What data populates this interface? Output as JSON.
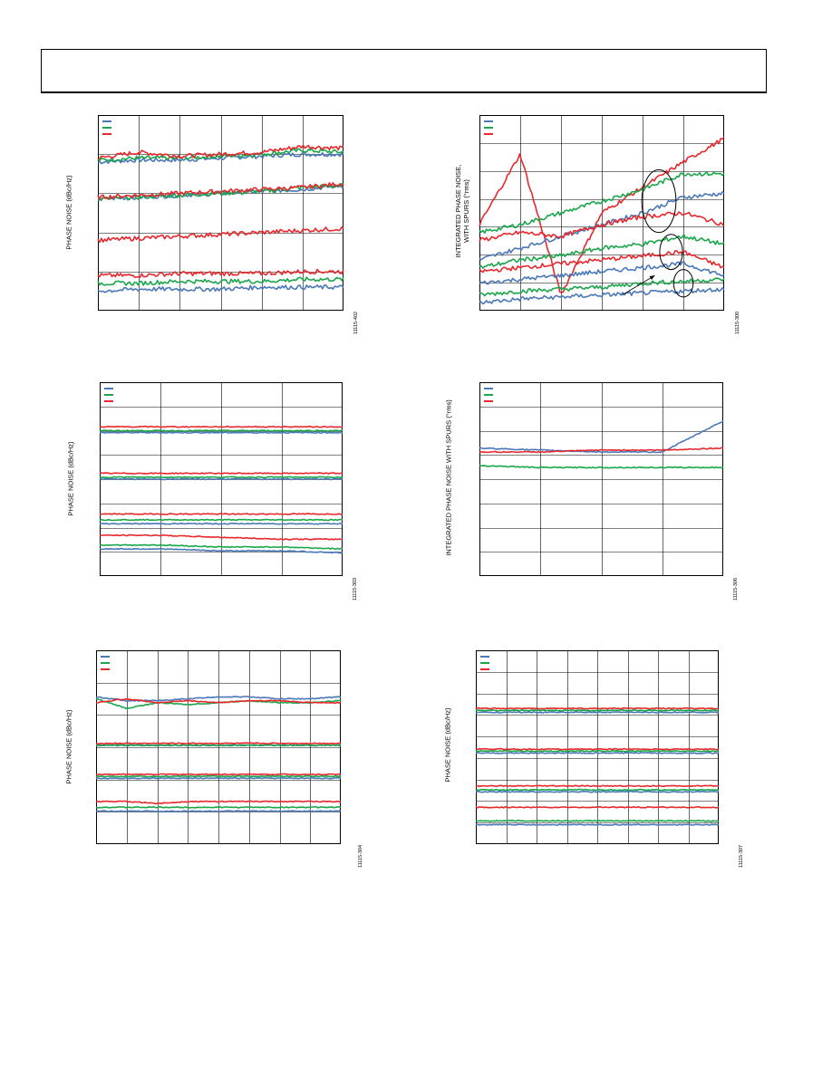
{
  "colors": {
    "series_1": "#4a78b8",
    "series_2": "#1aa64a",
    "series_3": "#e8282c",
    "grid": "#000000"
  },
  "chart_data": [
    {
      "id": "p1",
      "type": "line",
      "ylabel": "PHASE NOISE (dBc/Hz)",
      "fig_id": "11115-402",
      "xlim": [
        0,
        6
      ],
      "ylim": [
        0,
        100
      ],
      "grid_x": 6,
      "grid_y": 5,
      "grid": true,
      "legend": "top-left",
      "legend_entries": 3,
      "noise": "high",
      "series": [
        {
          "color_key": "series_1",
          "values": [
            76,
            77,
            77,
            78,
            79,
            80,
            80
          ]
        },
        {
          "color_key": "series_2",
          "values": [
            77,
            78,
            78,
            79,
            80,
            82,
            81
          ]
        },
        {
          "color_key": "series_3",
          "values": [
            78,
            81,
            79,
            80,
            81,
            84,
            83
          ]
        },
        {
          "color_key": "series_1",
          "values": [
            57,
            58,
            59,
            60,
            61,
            62,
            64
          ]
        },
        {
          "color_key": "series_2",
          "values": [
            57,
            58,
            59,
            60,
            61,
            63,
            64
          ]
        },
        {
          "color_key": "series_3",
          "values": [
            58,
            59,
            60,
            61,
            62,
            63,
            65
          ]
        },
        {
          "color_key": "series_3",
          "values": [
            36,
            37,
            38,
            39,
            40,
            41,
            42
          ]
        },
        {
          "color_key": "series_3",
          "values": [
            18,
            18,
            19,
            19,
            19,
            20,
            20
          ]
        },
        {
          "color_key": "series_2",
          "values": [
            14,
            14,
            15,
            15,
            15,
            16,
            16
          ]
        },
        {
          "color_key": "series_1",
          "values": [
            10,
            11,
            11,
            11,
            12,
            12,
            12
          ]
        }
      ]
    },
    {
      "id": "p2",
      "type": "line",
      "ylabel": "INTEGRATED PHASE NOISE,\nWITH SPURS (°rms)",
      "fig_id": "11115-300",
      "xlim": [
        0,
        6
      ],
      "ylim": [
        0,
        100
      ],
      "grid_x": 6,
      "grid_y": 7,
      "grid": true,
      "legend": "top-left",
      "legend_entries": 3,
      "noise": "high",
      "series": [
        {
          "color_key": "series_3",
          "values": [
            44,
            80,
            8,
            50,
            63,
            76,
            88
          ]
        },
        {
          "color_key": "series_2",
          "values": [
            40,
            44,
            50,
            56,
            62,
            70,
            70
          ]
        },
        {
          "color_key": "series_1",
          "values": [
            26,
            32,
            38,
            44,
            50,
            58,
            60
          ]
        },
        {
          "color_key": "series_3",
          "values": [
            36,
            40,
            38,
            44,
            48,
            50,
            44
          ]
        },
        {
          "color_key": "series_2",
          "values": [
            22,
            26,
            28,
            32,
            34,
            38,
            34
          ]
        },
        {
          "color_key": "series_3",
          "values": [
            20,
            22,
            24,
            26,
            28,
            30,
            22
          ]
        },
        {
          "color_key": "series_1",
          "values": [
            14,
            16,
            18,
            20,
            22,
            24,
            18
          ]
        },
        {
          "color_key": "series_2",
          "values": [
            8,
            10,
            11,
            12,
            14,
            15,
            16
          ]
        },
        {
          "color_key": "series_1",
          "values": [
            4,
            6,
            7,
            8,
            9,
            10,
            11
          ]
        }
      ],
      "markers": [
        {
          "type": "ellipse",
          "cx": 4.4,
          "cy": 56,
          "rx": 0.42,
          "ry": 16
        },
        {
          "type": "ellipse",
          "cx": 4.7,
          "cy": 30,
          "rx": 0.28,
          "ry": 9
        },
        {
          "type": "ellipse",
          "cx": 5.0,
          "cy": 14,
          "rx": 0.24,
          "ry": 7
        },
        {
          "type": "arrow",
          "x1": 3.5,
          "y1": 8,
          "x2": 4.3,
          "y2": 18
        }
      ]
    },
    {
      "id": "p3",
      "type": "line",
      "ylabel": "PHASE NOISE (dBc/Hz)",
      "fig_id": "11115-303",
      "xlim": [
        0,
        4.4
      ],
      "ylim": [
        0,
        100
      ],
      "grid_x": 4,
      "grid_y": 8,
      "grid": true,
      "legend": "top-left",
      "legend_entries": 3,
      "noise": "low",
      "series": [
        {
          "color_key": "series_1",
          "values": [
            74,
            74,
            74,
            74,
            74
          ]
        },
        {
          "color_key": "series_2",
          "values": [
            75,
            75,
            75,
            75,
            75
          ]
        },
        {
          "color_key": "series_3",
          "values": [
            77,
            77,
            77,
            77,
            77
          ]
        },
        {
          "color_key": "series_1",
          "values": [
            50,
            50,
            50,
            50,
            50
          ]
        },
        {
          "color_key": "series_2",
          "values": [
            51,
            51,
            51,
            51,
            51
          ]
        },
        {
          "color_key": "series_3",
          "values": [
            53,
            53,
            53,
            53,
            53
          ]
        },
        {
          "color_key": "series_3",
          "values": [
            32,
            32,
            32,
            32,
            32
          ]
        },
        {
          "color_key": "series_2",
          "values": [
            29,
            29,
            29,
            29,
            29
          ]
        },
        {
          "color_key": "series_1",
          "values": [
            27,
            27,
            27,
            27,
            27
          ]
        },
        {
          "color_key": "series_3",
          "values": [
            21,
            21,
            20,
            19,
            19
          ]
        },
        {
          "color_key": "series_2",
          "values": [
            16,
            16,
            15,
            15,
            14
          ]
        },
        {
          "color_key": "series_1",
          "values": [
            14,
            14,
            13,
            13,
            12
          ]
        }
      ]
    },
    {
      "id": "p4",
      "type": "line",
      "ylabel": "INTEGRATED PHASE NOISE WITH SPURS (°rms)",
      "fig_id": "11115-306",
      "xlim": [
        0,
        4.4
      ],
      "ylim": [
        0,
        100
      ],
      "grid_x": 4,
      "grid_y": 8,
      "grid": true,
      "legend": "top-left",
      "legend_entries": 3,
      "noise": "low",
      "series": [
        {
          "color_key": "series_1",
          "values": [
            66,
            65,
            64,
            64,
            80
          ]
        },
        {
          "color_key": "series_3",
          "values": [
            64,
            64,
            65,
            65,
            66
          ]
        },
        {
          "color_key": "series_2",
          "values": [
            57,
            56,
            56,
            56,
            56
          ]
        }
      ]
    },
    {
      "id": "p5",
      "type": "line",
      "ylabel": "PHASE NOISE (dBc/Hz)",
      "fig_id": "11115-304",
      "xlim": [
        0,
        8
      ],
      "ylim": [
        0,
        100
      ],
      "grid_x": 8,
      "grid_y": 6,
      "grid": true,
      "legend": "top-left",
      "legend_entries": 3,
      "noise": "low",
      "series": [
        {
          "color_key": "series_1",
          "values": [
            76,
            74,
            74,
            75,
            76,
            76,
            75,
            75,
            76
          ]
        },
        {
          "color_key": "series_2",
          "values": [
            75,
            70,
            73,
            72,
            73,
            74,
            73,
            73,
            74
          ]
        },
        {
          "color_key": "series_3",
          "values": [
            73,
            75,
            73,
            74,
            73,
            74,
            74,
            73,
            73
          ]
        },
        {
          "color_key": "series_1",
          "values": [
            51,
            51,
            51,
            51,
            51,
            51,
            51,
            51,
            51
          ]
        },
        {
          "color_key": "series_2",
          "values": [
            51,
            51,
            51,
            51,
            51,
            51,
            51,
            51,
            51
          ]
        },
        {
          "color_key": "series_3",
          "values": [
            52,
            52,
            52,
            52,
            52,
            52,
            52,
            52,
            52
          ]
        },
        {
          "color_key": "series_1",
          "values": [
            34,
            34,
            34,
            34,
            34,
            34,
            34,
            34,
            34
          ]
        },
        {
          "color_key": "series_2",
          "values": [
            35,
            35,
            35,
            35,
            35,
            35,
            35,
            35,
            35
          ]
        },
        {
          "color_key": "series_3",
          "values": [
            36,
            36,
            36,
            36,
            36,
            36,
            36,
            36,
            36
          ]
        },
        {
          "color_key": "series_3",
          "values": [
            22,
            22,
            21,
            22,
            22,
            22,
            22,
            22,
            22
          ]
        },
        {
          "color_key": "series_2",
          "values": [
            19,
            19,
            19,
            19,
            19,
            19,
            19,
            19,
            19
          ]
        },
        {
          "color_key": "series_1",
          "values": [
            17,
            17,
            17,
            17,
            17,
            17,
            17,
            17,
            17
          ]
        }
      ]
    },
    {
      "id": "p6",
      "type": "line",
      "ylabel": "PHASE NOISE (dBc/Hz)",
      "fig_id": "11115-307",
      "xlim": [
        0,
        8
      ],
      "ylim": [
        0,
        100
      ],
      "grid_x": 8,
      "grid_y": 9,
      "grid": true,
      "legend": "top-left",
      "legend_entries": 3,
      "noise": "low",
      "series": [
        {
          "color_key": "series_1",
          "values": [
            68,
            68,
            68,
            68,
            68,
            68,
            68,
            68,
            68
          ]
        },
        {
          "color_key": "series_2",
          "values": [
            69,
            69,
            69,
            69,
            69,
            69,
            69,
            69,
            69
          ]
        },
        {
          "color_key": "series_3",
          "values": [
            70,
            70,
            70,
            70,
            70,
            70,
            70,
            70,
            70
          ]
        },
        {
          "color_key": "series_1",
          "values": [
            47,
            47,
            47,
            47,
            47,
            47,
            47,
            47,
            47
          ]
        },
        {
          "color_key": "series_2",
          "values": [
            48,
            48,
            48,
            48,
            48,
            48,
            48,
            48,
            48
          ]
        },
        {
          "color_key": "series_3",
          "values": [
            49,
            49,
            49,
            49,
            49,
            49,
            49,
            49,
            49
          ]
        },
        {
          "color_key": "series_1",
          "values": [
            27,
            27,
            27,
            27,
            27,
            27,
            27,
            27,
            27
          ]
        },
        {
          "color_key": "series_2",
          "values": [
            28,
            28,
            28,
            28,
            28,
            28,
            28,
            28,
            28
          ]
        },
        {
          "color_key": "series_3",
          "values": [
            30,
            30,
            30,
            30,
            30,
            30,
            30,
            30,
            30
          ]
        },
        {
          "color_key": "series_3",
          "values": [
            19,
            19,
            19,
            19,
            19,
            19,
            19,
            19,
            19
          ]
        },
        {
          "color_key": "series_2",
          "values": [
            12,
            12,
            12,
            12,
            12,
            12,
            12,
            12,
            12
          ]
        },
        {
          "color_key": "series_1",
          "values": [
            10,
            10,
            10,
            10,
            10,
            10,
            10,
            10,
            10
          ]
        }
      ]
    }
  ]
}
